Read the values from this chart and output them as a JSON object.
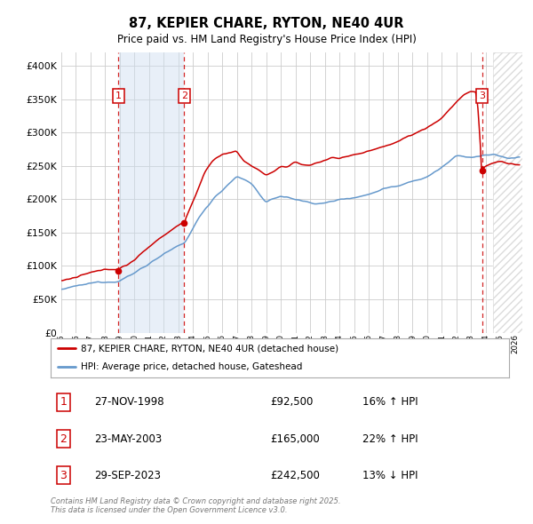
{
  "title": "87, KEPIER CHARE, RYTON, NE40 4UR",
  "subtitle": "Price paid vs. HM Land Registry's House Price Index (HPI)",
  "xlim_start": 1995.0,
  "xlim_end": 2026.5,
  "ylim_min": 0,
  "ylim_max": 420000,
  "yticks": [
    0,
    50000,
    100000,
    150000,
    200000,
    250000,
    300000,
    350000,
    400000
  ],
  "ytick_labels": [
    "£0",
    "£50K",
    "£100K",
    "£150K",
    "£200K",
    "£250K",
    "£300K",
    "£350K",
    "£400K"
  ],
  "sale_dates": [
    1998.9,
    2003.39,
    2023.74
  ],
  "sale_prices": [
    92500,
    165000,
    242500
  ],
  "sale_labels": [
    "1",
    "2",
    "3"
  ],
  "line_color_red": "#cc0000",
  "line_color_blue": "#6699cc",
  "shading_color": "#ccddf0",
  "grid_color": "#cccccc",
  "background_color": "#ffffff",
  "legend_label_red": "87, KEPIER CHARE, RYTON, NE40 4UR (detached house)",
  "legend_label_blue": "HPI: Average price, detached house, Gateshead",
  "footer": "Contains HM Land Registry data © Crown copyright and database right 2025.\nThis data is licensed under the Open Government Licence v3.0.",
  "table_rows": [
    [
      "1",
      "27-NOV-1998",
      "£92,500",
      "16% ↑ HPI"
    ],
    [
      "2",
      "23-MAY-2003",
      "£165,000",
      "22% ↑ HPI"
    ],
    [
      "3",
      "29-SEP-2023",
      "£242,500",
      "13% ↓ HPI"
    ]
  ]
}
